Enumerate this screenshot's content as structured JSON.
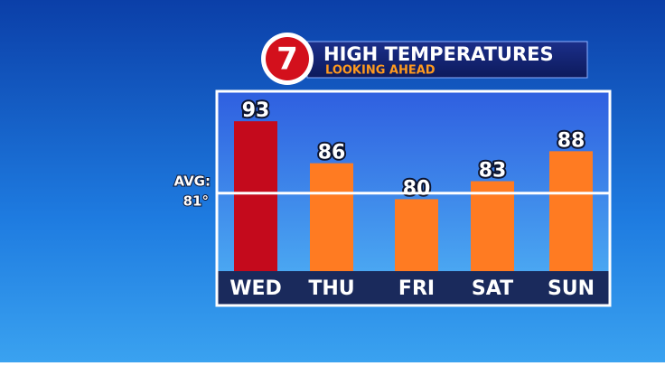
{
  "logo": "7",
  "chart_data": {
    "type": "bar",
    "title": "HIGH TEMPERATURES",
    "subtitle": "LOOKING AHEAD",
    "categories": [
      "WED",
      "THU",
      "FRI",
      "SAT",
      "SUN"
    ],
    "values": [
      93,
      86,
      80,
      83,
      88
    ],
    "colors": [
      "#c40a1c",
      "#ff7b22",
      "#ff7b22",
      "#ff7b22",
      "#ff7b22"
    ],
    "ylim": [
      68,
      98
    ],
    "average": {
      "label": "AVG:",
      "value": 81,
      "value_label": "81°"
    }
  }
}
